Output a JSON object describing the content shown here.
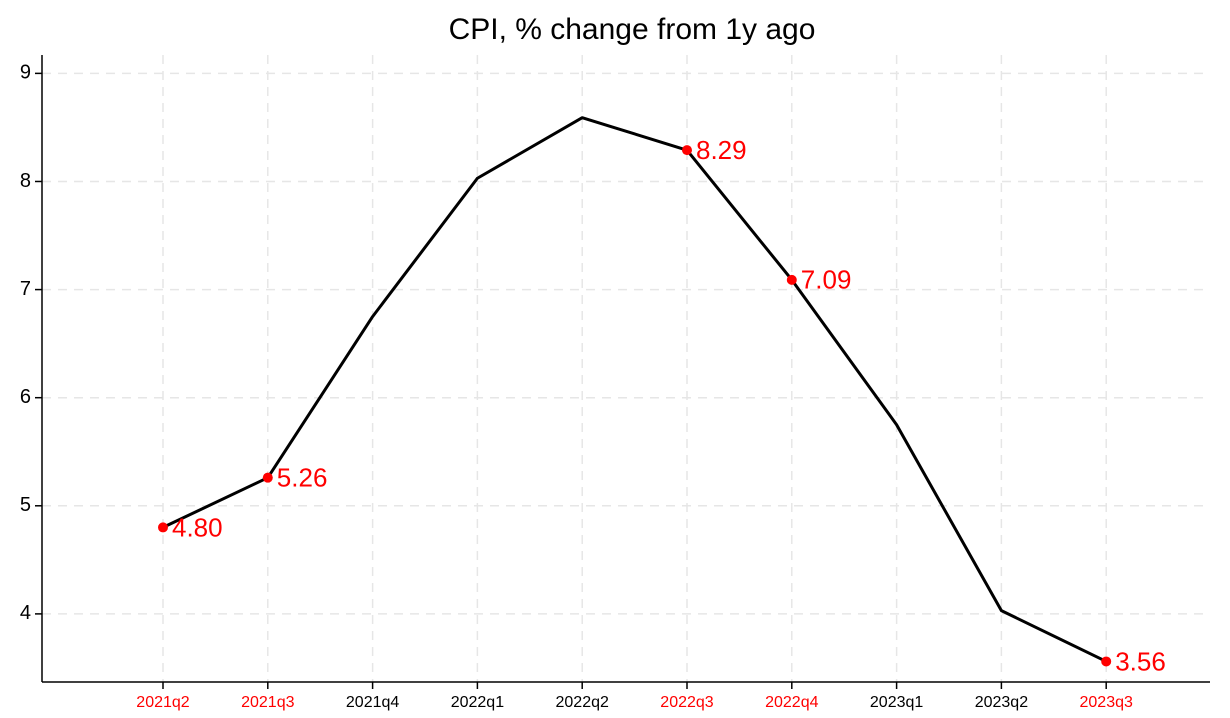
{
  "chart_data": {
    "type": "line",
    "title": "CPI, % change from 1y ago",
    "categories": [
      "2021q2",
      "2021q3",
      "2021q4",
      "2022q1",
      "2022q2",
      "2022q3",
      "2022q4",
      "2023q1",
      "2023q2",
      "2023q3"
    ],
    "values": [
      4.8,
      5.26,
      6.75,
      8.03,
      8.59,
      8.29,
      7.09,
      5.75,
      4.03,
      3.56
    ],
    "value_labels": [
      "4.80",
      "5.26",
      null,
      null,
      null,
      "8.29",
      "7.09",
      null,
      null,
      "3.56"
    ],
    "color": "#000000",
    "highlight_color": "#ff0000",
    "ylim": [
      3.37,
      9.17
    ],
    "yticks": [
      4,
      5,
      6,
      7,
      8,
      9
    ],
    "grid": true
  }
}
